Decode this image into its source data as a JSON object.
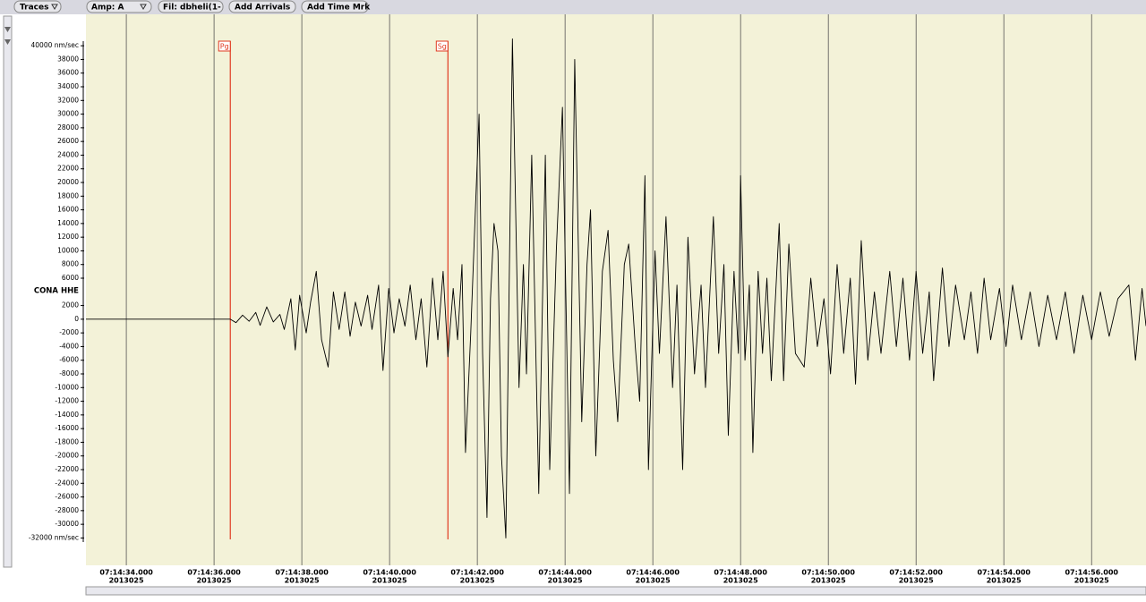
{
  "toolbar": {
    "buttons": [
      "Traces",
      "Amp: A",
      "Fil: dbheli(1-",
      "Add Arrivals",
      "Add Time Mrk"
    ]
  },
  "chart_data": {
    "type": "line",
    "trace_label": "CONA HHE",
    "color": "#000000",
    "x": [
      33.08,
      36.37,
      36.5,
      36.65,
      36.8,
      36.95,
      37.05,
      37.2,
      37.35,
      37.5,
      37.6,
      37.75,
      37.85,
      37.95,
      38.1,
      38.2,
      38.33,
      38.45,
      38.6,
      38.72,
      38.85,
      38.98,
      39.1,
      39.22,
      39.35,
      39.5,
      39.6,
      39.75,
      39.85,
      39.98,
      40.1,
      40.22,
      40.35,
      40.47,
      40.6,
      40.72,
      40.85,
      40.98,
      41.1,
      41.22,
      41.33,
      41.45,
      41.55,
      41.65,
      41.73,
      41.85,
      41.95,
      42.04,
      42.12,
      42.22,
      42.3,
      42.38,
      42.47,
      42.55,
      42.65,
      42.8,
      42.95,
      43.05,
      43.12,
      43.24,
      43.4,
      43.55,
      43.65,
      43.8,
      43.94,
      44.1,
      44.22,
      44.38,
      44.5,
      44.58,
      44.7,
      44.85,
      44.98,
      45.1,
      45.2,
      45.35,
      45.45,
      45.6,
      45.7,
      45.82,
      45.9,
      46.05,
      46.15,
      46.3,
      46.45,
      46.55,
      46.68,
      46.8,
      46.95,
      47.1,
      47.2,
      47.38,
      47.5,
      47.62,
      47.72,
      47.85,
      47.95,
      48.0,
      48.1,
      48.2,
      48.28,
      48.4,
      48.5,
      48.6,
      48.7,
      48.88,
      48.98,
      49.1,
      49.25,
      49.45,
      49.6,
      49.75,
      49.9,
      50.05,
      50.2,
      50.35,
      50.5,
      50.62,
      50.75,
      50.9,
      51.05,
      51.2,
      51.4,
      51.55,
      51.7,
      51.85,
      52.0,
      52.15,
      52.3,
      52.4,
      52.6,
      52.75,
      52.9,
      53.1,
      53.25,
      53.4,
      53.55,
      53.7,
      53.9,
      54.05,
      54.2,
      54.4,
      54.6,
      54.8,
      55.0,
      55.2,
      55.4,
      55.6,
      55.8,
      56.0,
      56.2,
      56.4,
      56.6,
      56.85,
      57.0,
      57.15,
      57.24
    ],
    "values": [
      0,
      0,
      -500,
      600,
      -300,
      1000,
      -900,
      1800,
      -400,
      700,
      -1500,
      3000,
      -4500,
      3500,
      -2000,
      2500,
      7000,
      -3000,
      -7000,
      4000,
      -1500,
      4000,
      -2500,
      2500,
      -1000,
      3500,
      -1500,
      5000,
      -7500,
      4500,
      -2000,
      3000,
      -1000,
      5000,
      -3000,
      3000,
      -7000,
      6000,
      -3000,
      7000,
      -5500,
      4500,
      -3000,
      8000,
      -19500,
      -2000,
      15000,
      30000,
      -5000,
      -29000,
      3000,
      14000,
      10000,
      -20000,
      -32000,
      41000,
      -10000,
      8000,
      -8000,
      24000,
      -25500,
      24000,
      -22000,
      10000,
      31000,
      -25500,
      38000,
      -15000,
      8000,
      16000,
      -20000,
      7000,
      13000,
      -6000,
      -15000,
      8000,
      11000,
      -4000,
      -12000,
      21000,
      -22000,
      10000,
      -5000,
      15000,
      -10000,
      5000,
      -22000,
      12000,
      -8000,
      5000,
      -10000,
      15000,
      -5000,
      8000,
      -17000,
      7000,
      -5000,
      21000,
      -6000,
      5000,
      -19500,
      7000,
      -5000,
      6000,
      -9000,
      14000,
      -9000,
      11000,
      -5000,
      -7000,
      6000,
      -4000,
      3000,
      -8000,
      8000,
      -5000,
      6000,
      -9500,
      11500,
      -6000,
      4000,
      -5000,
      7000,
      -4000,
      6000,
      -6000,
      7000,
      -5000,
      4000,
      -9000,
      7500,
      -4000,
      5000,
      -3000,
      4000,
      -5000,
      6000,
      -3000,
      4500,
      -4000,
      5000,
      -3000,
      4000,
      -4000,
      3500,
      -3000,
      4000,
      -5000,
      3500,
      -3000,
      4000,
      -2500,
      3000,
      5000,
      -6000,
      4500,
      -1000
    ],
    "xlim": [
      33.08,
      57.24
    ],
    "ylim": [
      -36000,
      44600
    ],
    "yticks": [
      {
        "value": 40000,
        "label": "40000 nm/sec"
      },
      38000,
      36000,
      34000,
      32000,
      30000,
      28000,
      26000,
      24000,
      22000,
      20000,
      18000,
      16000,
      14000,
      12000,
      10000,
      8000,
      6000,
      2000,
      0,
      -2000,
      -4000,
      -6000,
      -8000,
      -10000,
      -12000,
      -14000,
      -16000,
      -18000,
      -20000,
      -22000,
      -24000,
      -26000,
      -28000,
      -30000,
      {
        "value": -32000,
        "label": "-32000 nm/sec"
      }
    ],
    "xticks": [
      {
        "value": 34,
        "label": "07:14:34.000"
      },
      {
        "value": 36,
        "label": "07:14:36.000"
      },
      {
        "value": 38,
        "label": "07:14:38.000"
      },
      {
        "value": 40,
        "label": "07:14:40.000"
      },
      {
        "value": 42,
        "label": "07:14:42.000"
      },
      {
        "value": 44,
        "label": "07:14:44.000"
      },
      {
        "value": 46,
        "label": "07:14:46.000"
      },
      {
        "value": 48,
        "label": "07:14:48.000"
      },
      {
        "value": 50,
        "label": "07:14:50.000"
      },
      {
        "value": 52,
        "label": "07:14:52.000"
      },
      {
        "value": 54,
        "label": "07:14:54.000"
      },
      {
        "value": 56,
        "label": "07:14:56.000"
      }
    ],
    "xtick_date": "2013025",
    "grid": true,
    "arrivals": [
      {
        "label": "Pg",
        "x": 36.37
      },
      {
        "label": "Sg",
        "x": 41.33
      }
    ],
    "arrival_color": "#e03a20"
  }
}
